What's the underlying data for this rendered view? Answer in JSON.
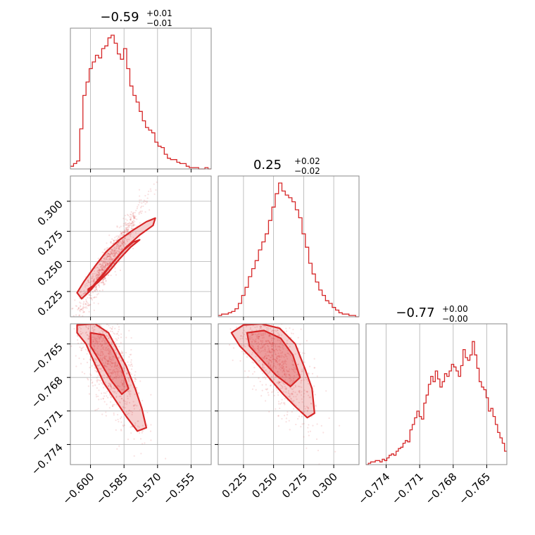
{
  "chart_data": {
    "type": "corner",
    "color": "#d62728",
    "grid": true,
    "parameters": [
      {
        "title": "−0.59",
        "upper": "+0.01",
        "lower": "−0.01",
        "range": [
          -0.609,
          -0.546
        ],
        "ticks": [
          -0.6,
          -0.585,
          -0.57,
          -0.555
        ],
        "tick_labels": [
          "−0.600",
          "−0.585",
          "−0.570",
          "−0.555"
        ],
        "hist": [
          0.02,
          0.04,
          0.06,
          0.3,
          0.55,
          0.65,
          0.75,
          0.8,
          0.85,
          0.83,
          0.9,
          0.92,
          0.98,
          1.0,
          0.94,
          0.86,
          0.82,
          0.9,
          0.75,
          0.62,
          0.55,
          0.5,
          0.43,
          0.36,
          0.31,
          0.29,
          0.27,
          0.2,
          0.17,
          0.16,
          0.11,
          0.08,
          0.07,
          0.07,
          0.05,
          0.04,
          0.04,
          0.02,
          0.01,
          0.01,
          0.01,
          0.0,
          0.0,
          0.01,
          0.0
        ]
      },
      {
        "title": "0.25",
        "upper": "+0.02",
        "lower": "−0.02",
        "range": [
          0.204,
          0.321
        ],
        "ticks": [
          0.225,
          0.25,
          0.275,
          0.3
        ],
        "tick_labels": [
          "0.225",
          "0.250",
          "0.275",
          "0.300"
        ],
        "hist": [
          0.01,
          0.02,
          0.02,
          0.03,
          0.04,
          0.06,
          0.1,
          0.16,
          0.22,
          0.3,
          0.36,
          0.42,
          0.5,
          0.56,
          0.62,
          0.72,
          0.82,
          0.92,
          1.0,
          0.94,
          0.91,
          0.89,
          0.86,
          0.8,
          0.74,
          0.62,
          0.52,
          0.4,
          0.32,
          0.26,
          0.2,
          0.16,
          0.12,
          0.1,
          0.07,
          0.05,
          0.03,
          0.02,
          0.02,
          0.01,
          0.01,
          0.0
        ]
      },
      {
        "title": "−0.77",
        "upper": "+0.00",
        "lower": "−0.00",
        "range": [
          -0.7758,
          -0.7632
        ],
        "ticks": [
          -0.774,
          -0.771,
          -0.768,
          -0.765
        ],
        "tick_labels": [
          "−0.774",
          "−0.771",
          "−0.768",
          "−0.765"
        ],
        "hist": [
          0.0,
          0.01,
          0.02,
          0.02,
          0.03,
          0.03,
          0.02,
          0.04,
          0.03,
          0.05,
          0.07,
          0.08,
          0.07,
          0.1,
          0.12,
          0.13,
          0.16,
          0.18,
          0.17,
          0.26,
          0.3,
          0.35,
          0.4,
          0.36,
          0.34,
          0.46,
          0.52,
          0.6,
          0.66,
          0.62,
          0.7,
          0.64,
          0.58,
          0.62,
          0.68,
          0.66,
          0.7,
          0.75,
          0.73,
          0.7,
          0.66,
          0.74,
          0.86,
          0.8,
          0.78,
          0.82,
          0.92,
          0.82,
          0.72,
          0.62,
          0.58,
          0.56,
          0.5,
          0.4,
          0.42,
          0.36,
          0.3,
          0.24,
          0.2,
          0.16,
          0.1
        ]
      }
    ]
  }
}
